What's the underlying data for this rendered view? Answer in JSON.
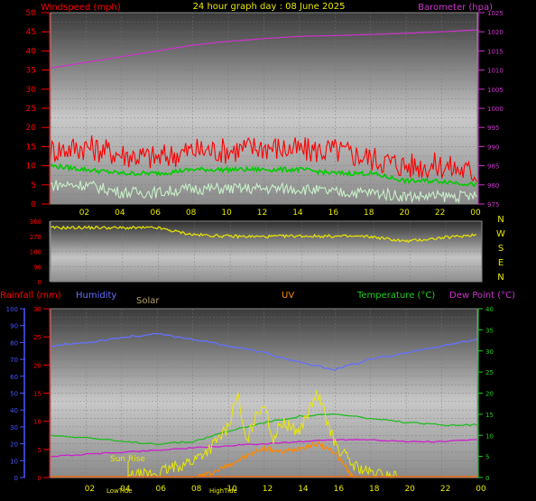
{
  "header": {
    "title": "24 hour graph day : 08 June 2025",
    "left_label": "Windspeed (mph)",
    "right_label": "Barometer (hpa)"
  },
  "bottom_header": {
    "rainfall": "Rainfall (mm)",
    "humidity": "Humidity",
    "solar": "Solar",
    "uv": "UV",
    "temperature": "Temperature (°C)",
    "dewpoint": "Dew Point (°C)"
  },
  "annotations": {
    "sun_rise": "Sun Rise",
    "lowtide": "LowTide",
    "hightide": "HighTide"
  },
  "colors": {
    "wind": "#ff0000",
    "avg_wind": "#00cc00",
    "gust_low": "#c8f0c8",
    "barometer": "#cc33cc",
    "direction": "#e8e800",
    "humidity": "#6670ff",
    "temperature": "#22bb22",
    "dewpoint": "#cc22cc",
    "solar": "#e8e800",
    "uv": "#ff8800",
    "axis_wind": "#ff0000",
    "axis_baro": "#cc33cc",
    "axis_rain": "#ff0000",
    "axis_humidity": "#4b55ff",
    "axis_temp": "#22cc22"
  },
  "chart_data": [
    {
      "type": "line",
      "name": "wind-barometer",
      "x_ticks": [
        "02",
        "04",
        "06",
        "08",
        "10",
        "12",
        "14",
        "16",
        "18",
        "20",
        "22",
        "00"
      ],
      "y_left_ticks": [
        "0",
        "5",
        "10",
        "15",
        "20",
        "25",
        "30",
        "35",
        "40",
        "45",
        "50"
      ],
      "y_right_ticks": [
        "975",
        "980",
        "985",
        "990",
        "995",
        "1000",
        "1005",
        "1010",
        "1015",
        "1020",
        "1025"
      ],
      "ylim_left": [
        0,
        50
      ],
      "ylim_right": [
        975,
        1025
      ],
      "series": [
        {
          "key": "barometer",
          "axis": "right",
          "x": [
            0,
            2,
            4,
            6,
            8,
            10,
            12,
            14,
            16,
            18,
            20,
            22,
            24
          ],
          "values": [
            1010.5,
            1012,
            1013.5,
            1015,
            1016.5,
            1017.5,
            1018.2,
            1018.8,
            1019,
            1019.3,
            1019.6,
            1020,
            1020.5
          ]
        },
        {
          "key": "wind",
          "axis": "left",
          "x": [
            0,
            2,
            4,
            6,
            8,
            10,
            12,
            14,
            16,
            18,
            20,
            22,
            24
          ],
          "values": [
            14,
            15,
            13,
            12,
            14,
            14,
            15,
            14,
            14,
            12,
            10,
            10,
            8
          ]
        },
        {
          "key": "avg_wind",
          "axis": "left",
          "x": [
            0,
            2,
            4,
            6,
            8,
            10,
            12,
            14,
            16,
            18,
            20,
            22,
            24
          ],
          "values": [
            10,
            9,
            8,
            8,
            9,
            9,
            9,
            9,
            8,
            8,
            6,
            6,
            5
          ]
        },
        {
          "key": "gust_low",
          "axis": "left",
          "x": [
            0,
            2,
            4,
            6,
            8,
            10,
            12,
            14,
            16,
            18,
            20,
            22,
            24
          ],
          "values": [
            5,
            5,
            3,
            3,
            4,
            4,
            4,
            4,
            3,
            3,
            2,
            2,
            2
          ]
        }
      ]
    },
    {
      "type": "line",
      "name": "wind-direction",
      "y_ticks": [
        "360",
        "270",
        "180",
        "90",
        "0"
      ],
      "direction_labels": [
        "N",
        "W",
        "S",
        "E",
        "N"
      ],
      "ylim": [
        0,
        360
      ],
      "series": [
        {
          "key": "direction",
          "x": [
            0,
            2,
            4,
            6,
            8,
            10,
            12,
            14,
            16,
            18,
            20,
            22,
            24
          ],
          "values": [
            320,
            322,
            320,
            320,
            280,
            270,
            268,
            272,
            270,
            268,
            240,
            260,
            280
          ]
        }
      ]
    },
    {
      "type": "line",
      "name": "rain-humidity-temp",
      "x_ticks": [
        "02",
        "04",
        "06",
        "08",
        "10",
        "12",
        "14",
        "16",
        "18",
        "20",
        "22",
        "00"
      ],
      "y_humidity_ticks": [
        "0",
        "10",
        "20",
        "30",
        "40",
        "50",
        "60",
        "70",
        "80",
        "90",
        "100"
      ],
      "y_rain_ticks": [
        "0",
        "5",
        "10",
        "15",
        "20",
        "25",
        "30"
      ],
      "y_temp_ticks": [
        "0",
        "5",
        "10",
        "15",
        "20",
        "25",
        "30",
        "35",
        "40"
      ],
      "series": [
        {
          "key": "humidity",
          "axis": "humidity",
          "x": [
            0,
            2,
            4,
            6,
            8,
            10,
            12,
            14,
            16,
            18,
            20,
            22,
            24
          ],
          "values": [
            78,
            80,
            83,
            85,
            82,
            78,
            74,
            68,
            64,
            70,
            74,
            78,
            82
          ]
        },
        {
          "key": "temperature",
          "axis": "temp",
          "x": [
            0,
            2,
            4,
            6,
            8,
            10,
            12,
            14,
            16,
            18,
            20,
            22,
            24
          ],
          "values": [
            10,
            9.5,
            8.5,
            8,
            8.5,
            11,
            13,
            14.5,
            15,
            14,
            13,
            12.5,
            12.5
          ]
        },
        {
          "key": "dewpoint",
          "axis": "temp",
          "x": [
            0,
            2,
            4,
            6,
            8,
            10,
            12,
            14,
            16,
            18,
            20,
            22,
            24
          ],
          "values": [
            5,
            5.5,
            6,
            6.5,
            7,
            7.5,
            8,
            8.5,
            9,
            9,
            8.5,
            8.5,
            9
          ]
        },
        {
          "key": "solar",
          "axis": "temp",
          "x": [
            0,
            4,
            6,
            8,
            9,
            10,
            10.5,
            11,
            11.5,
            12,
            12.5,
            13,
            14,
            15,
            16,
            17,
            18,
            20,
            24
          ],
          "values": [
            0,
            0,
            1,
            4,
            7,
            12,
            20,
            8,
            14,
            18,
            9,
            13,
            11,
            20,
            8,
            3,
            1,
            0,
            0
          ]
        },
        {
          "key": "uv",
          "axis": "temp",
          "x": [
            0,
            8,
            9,
            10,
            11,
            12,
            13,
            14,
            15,
            16,
            16.5,
            17,
            24
          ],
          "values": [
            0,
            0,
            1,
            3,
            5,
            7,
            6,
            7,
            8,
            6,
            3,
            0,
            0
          ]
        }
      ]
    }
  ]
}
